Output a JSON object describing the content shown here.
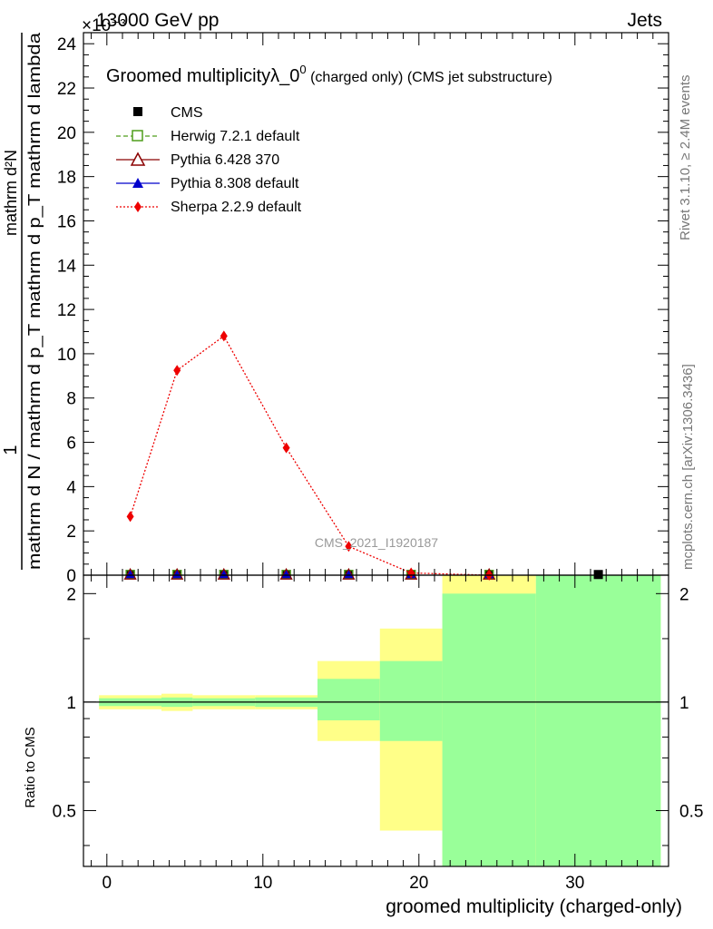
{
  "header": {
    "left": "13000 GeV pp",
    "right": "Jets",
    "exponent_label": "×10⁻³"
  },
  "plot_title": {
    "main": "Groomed multiplicityλ_0",
    "superscript": "0",
    "suffix": " (charged only) (CMS jet substructure)"
  },
  "watermark": "CMS_2021_I1920187",
  "side_labels": {
    "rivet": "Rivet 3.1.10, ≥ 2.4M events",
    "mcplots": "mcplots.cern.ch [arXiv:1306.3436]"
  },
  "colors": {
    "cms": "#000000",
    "herwig": "#4f9d1b",
    "pythia6": "#8b0000",
    "pythia8": "#0000cc",
    "sherpa": "#ee0000",
    "band_inner": "#99ff99",
    "band_outer": "#ffff88"
  },
  "chart_data": {
    "type": "line",
    "x_axis_label": "groomed multiplicity (charged-only)",
    "y_axis_label": {
      "numerator": "1",
      "denominator": "mathrm d N / mathrm d p_T mathrm d p_T mathrm d lambda",
      "upper": "mathrm d²N"
    },
    "ratio_axis_label": "Ratio to CMS",
    "xlim": [
      -1.5,
      36
    ],
    "ylim": [
      0,
      24.5
    ],
    "y_scale_factor": 0.001,
    "ratio_ylim": [
      0.35,
      2.25
    ],
    "ratio_scale": "log",
    "x_ticks": [
      0,
      10,
      20,
      30
    ],
    "y_ticks": [
      0,
      2,
      4,
      6,
      8,
      10,
      12,
      14,
      16,
      18,
      20,
      22,
      24
    ],
    "ratio_ticks": [
      0.5,
      1,
      2
    ],
    "legend": {
      "position": "top-left",
      "entries": [
        "CMS",
        "Herwig 7.2.1 default",
        "Pythia 6.428 370",
        "Pythia 8.308 default",
        "Sherpa 2.2.9 default"
      ]
    },
    "series": [
      {
        "name": "CMS",
        "marker": "square",
        "x": [
          1.5,
          4.5,
          7.5,
          11.5,
          15.5,
          19.5,
          24.5,
          31.5
        ],
        "y": [
          0.03,
          0.03,
          0.03,
          0.03,
          0.03,
          0.03,
          0.03,
          0.03
        ]
      },
      {
        "name": "Herwig 7.2.1 default",
        "marker": "open-square",
        "x": [
          1.5,
          4.5,
          7.5,
          11.5,
          15.5,
          19.5,
          24.5
        ],
        "y": [
          0.03,
          0.03,
          0.03,
          0.03,
          0.03,
          0.03,
          0.03
        ]
      },
      {
        "name": "Pythia 6.428 370",
        "marker": "open-triangle",
        "x": [
          1.5,
          4.5,
          7.5,
          11.5,
          15.5,
          19.5,
          24.5
        ],
        "y": [
          0.03,
          0.03,
          0.03,
          0.03,
          0.03,
          0.03,
          0.03
        ]
      },
      {
        "name": "Pythia 8.308 default",
        "marker": "triangle",
        "x": [
          1.5,
          4.5,
          7.5,
          11.5,
          15.5,
          19.5,
          24.5
        ],
        "y": [
          0.03,
          0.03,
          0.03,
          0.03,
          0.03,
          0.03,
          0.03
        ]
      },
      {
        "name": "Sherpa 2.2.9 default",
        "marker": "diamond",
        "x": [
          1.5,
          4.5,
          7.5,
          11.5,
          15.5,
          19.5,
          24.5
        ],
        "y": [
          2.65,
          9.25,
          10.8,
          5.75,
          1.3,
          0.1,
          0.0
        ]
      }
    ],
    "ratio_bands": [
      {
        "xmin": -0.5,
        "xmax": 3.5,
        "inner": [
          0.975,
          1.025
        ],
        "outer": [
          0.955,
          1.045
        ]
      },
      {
        "xmin": 3.5,
        "xmax": 5.5,
        "inner": [
          0.97,
          1.03
        ],
        "outer": [
          0.945,
          1.055
        ]
      },
      {
        "xmin": 5.5,
        "xmax": 9.5,
        "inner": [
          0.975,
          1.025
        ],
        "outer": [
          0.955,
          1.045
        ]
      },
      {
        "xmin": 9.5,
        "xmax": 13.5,
        "inner": [
          0.97,
          1.03
        ],
        "outer": [
          0.955,
          1.045
        ]
      },
      {
        "xmin": 13.5,
        "xmax": 17.5,
        "inner": [
          0.89,
          1.16
        ],
        "outer": [
          0.78,
          1.3
        ]
      },
      {
        "xmin": 17.5,
        "xmax": 21.5,
        "inner": [
          0.78,
          1.3
        ],
        "outer": [
          0.44,
          1.6
        ]
      },
      {
        "xmin": 21.5,
        "xmax": 27.5,
        "inner": [
          0.35,
          2.0
        ],
        "outer": [
          0.35,
          2.25
        ]
      },
      {
        "xmin": 27.5,
        "xmax": 35.5,
        "inner": [
          0.35,
          2.25
        ],
        "outer": [
          0.35,
          2.25
        ]
      }
    ]
  }
}
